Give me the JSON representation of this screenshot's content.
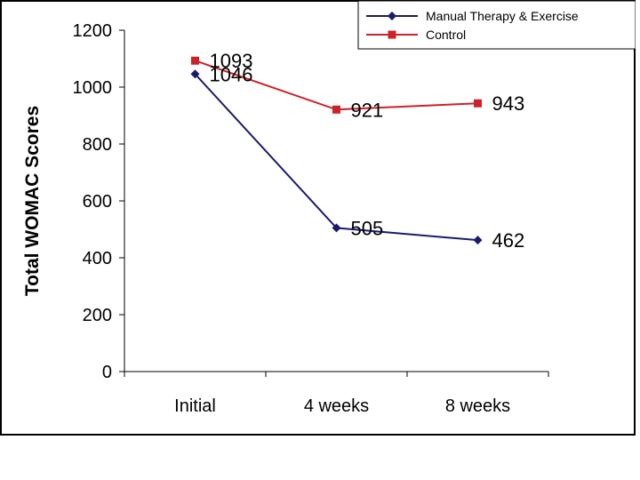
{
  "chart_data": {
    "type": "line",
    "categories": [
      "Initial",
      "4 weeks",
      "8 weeks"
    ],
    "series": [
      {
        "name": "Manual Therapy & Exercise",
        "values": [
          1046,
          505,
          462
        ],
        "color": "#1a1a6e",
        "marker": "diamond"
      },
      {
        "name": "Control",
        "values": [
          1093,
          921,
          943
        ],
        "color": "#cc2229",
        "marker": "square"
      }
    ],
    "title": "",
    "xlabel": "",
    "ylabel": "Total WOMAC Scores",
    "ylim": [
      0,
      1200
    ],
    "yticks": [
      0,
      200,
      400,
      600,
      800,
      1000,
      1200
    ],
    "grid": false,
    "legend": "top-right"
  }
}
